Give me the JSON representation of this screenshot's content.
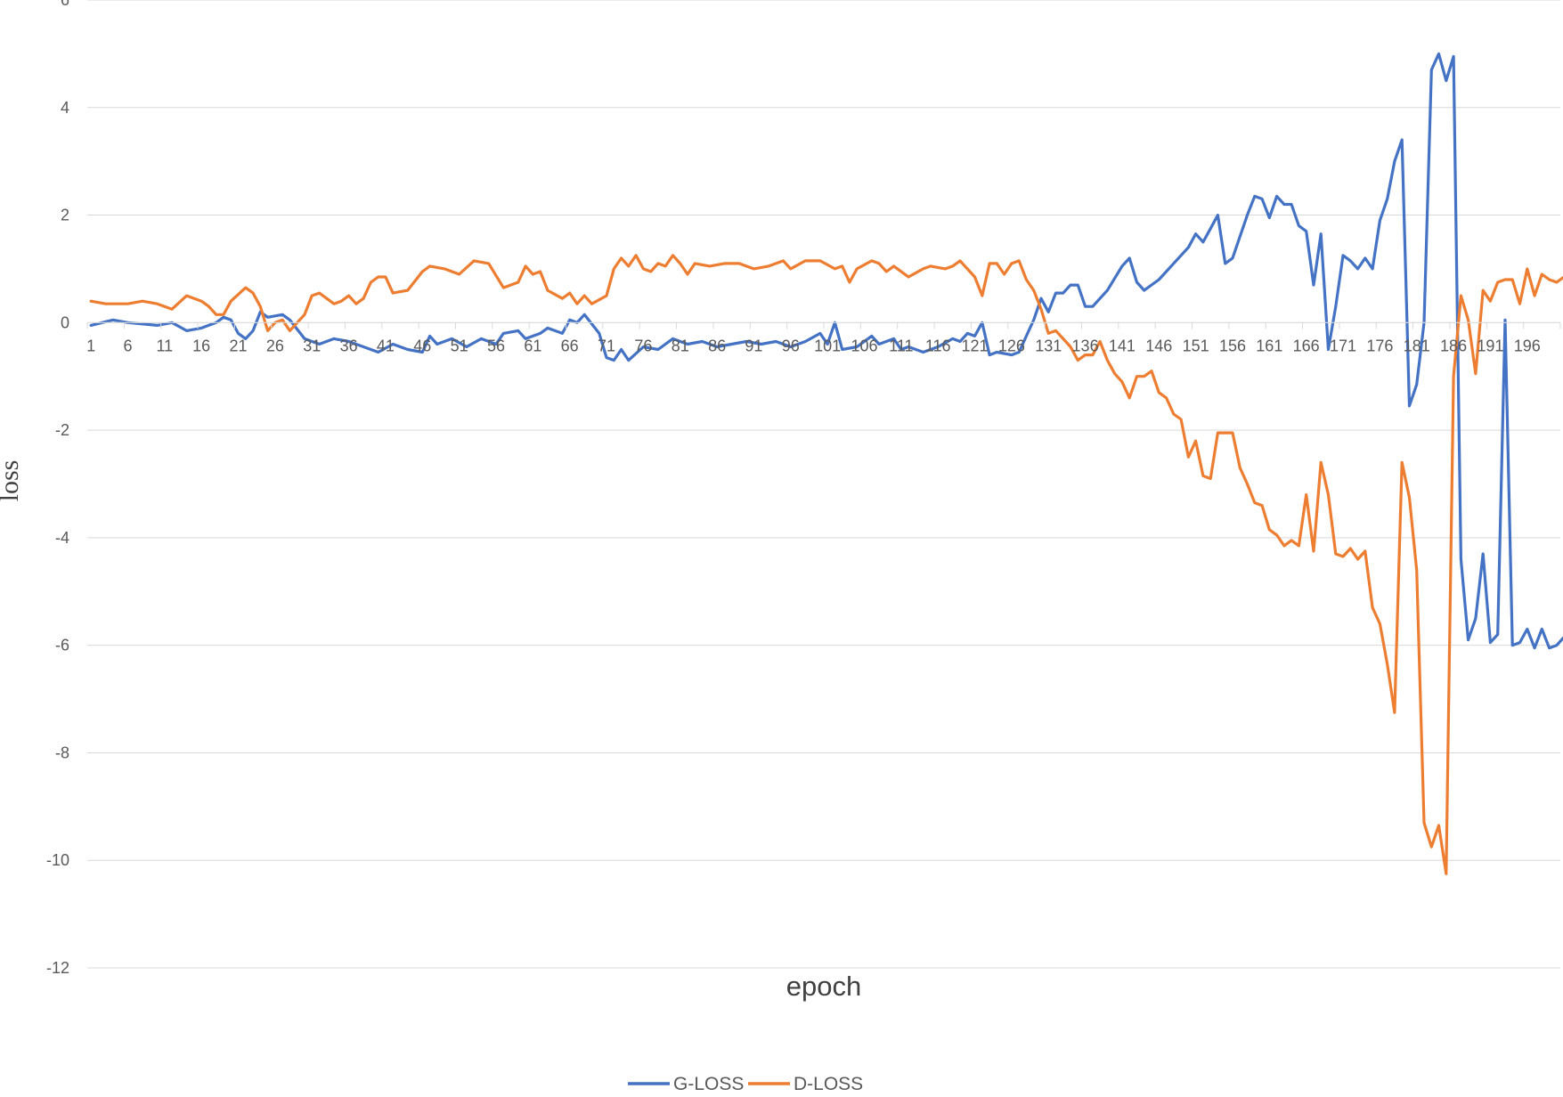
{
  "chart_data": {
    "type": "line",
    "xlabel": "epoch",
    "ylabel": "loss",
    "ylim": [
      -12,
      6
    ],
    "yticks": [
      6,
      4,
      2,
      0,
      -2,
      -4,
      -6,
      -8,
      -10,
      -12
    ],
    "x_tick_labels": [
      "1",
      "6",
      "11",
      "16",
      "21",
      "26",
      "31",
      "36",
      "41",
      "46",
      "51",
      "56",
      "61",
      "66",
      "71",
      "76",
      "81",
      "86",
      "91",
      "96",
      "101",
      "106",
      "111",
      "116",
      "121",
      "126",
      "131",
      "136",
      "141",
      "146",
      "151",
      "156",
      "161",
      "166",
      "171",
      "176",
      "181",
      "186",
      "191",
      "196"
    ],
    "x_range": [
      1,
      200
    ],
    "grid": true,
    "legend_position": "bottom",
    "colors": {
      "G-LOSS": "#4472C4",
      "D-LOSS": "#ED7D31"
    },
    "series": [
      {
        "name": "G-LOSS",
        "points": [
          [
            1,
            -0.05
          ],
          [
            4,
            0.05
          ],
          [
            6,
            0.0
          ],
          [
            10,
            -0.05
          ],
          [
            12,
            0.0
          ],
          [
            14,
            -0.15
          ],
          [
            16,
            -0.1
          ],
          [
            18,
            0.0
          ],
          [
            19,
            0.1
          ],
          [
            20,
            0.05
          ],
          [
            21,
            -0.2
          ],
          [
            22,
            -0.3
          ],
          [
            23,
            -0.15
          ],
          [
            24,
            0.2
          ],
          [
            25,
            0.1
          ],
          [
            27,
            0.15
          ],
          [
            28,
            0.05
          ],
          [
            30,
            -0.3
          ],
          [
            32,
            -0.4
          ],
          [
            34,
            -0.3
          ],
          [
            36,
            -0.35
          ],
          [
            38,
            -0.45
          ],
          [
            40,
            -0.55
          ],
          [
            42,
            -0.4
          ],
          [
            44,
            -0.5
          ],
          [
            46,
            -0.55
          ],
          [
            47,
            -0.25
          ],
          [
            48,
            -0.4
          ],
          [
            50,
            -0.3
          ],
          [
            52,
            -0.45
          ],
          [
            54,
            -0.3
          ],
          [
            56,
            -0.4
          ],
          [
            57,
            -0.2
          ],
          [
            59,
            -0.15
          ],
          [
            60,
            -0.3
          ],
          [
            62,
            -0.2
          ],
          [
            63,
            -0.1
          ],
          [
            65,
            -0.2
          ],
          [
            66,
            0.05
          ],
          [
            67,
            0.0
          ],
          [
            68,
            0.15
          ],
          [
            70,
            -0.2
          ],
          [
            71,
            -0.65
          ],
          [
            72,
            -0.7
          ],
          [
            73,
            -0.5
          ],
          [
            74,
            -0.7
          ],
          [
            76,
            -0.45
          ],
          [
            78,
            -0.5
          ],
          [
            80,
            -0.3
          ],
          [
            82,
            -0.4
          ],
          [
            84,
            -0.35
          ],
          [
            86,
            -0.45
          ],
          [
            88,
            -0.4
          ],
          [
            90,
            -0.35
          ],
          [
            92,
            -0.4
          ],
          [
            94,
            -0.35
          ],
          [
            96,
            -0.45
          ],
          [
            98,
            -0.35
          ],
          [
            100,
            -0.2
          ],
          [
            101,
            -0.4
          ],
          [
            102,
            0.0
          ],
          [
            103,
            -0.5
          ],
          [
            105,
            -0.45
          ],
          [
            107,
            -0.25
          ],
          [
            108,
            -0.4
          ],
          [
            110,
            -0.3
          ],
          [
            111,
            -0.5
          ],
          [
            112,
            -0.45
          ],
          [
            114,
            -0.55
          ],
          [
            116,
            -0.45
          ],
          [
            118,
            -0.3
          ],
          [
            119,
            -0.35
          ],
          [
            120,
            -0.2
          ],
          [
            121,
            -0.25
          ],
          [
            122,
            0.0
          ],
          [
            123,
            -0.6
          ],
          [
            124,
            -0.55
          ],
          [
            126,
            -0.6
          ],
          [
            127,
            -0.55
          ],
          [
            128,
            -0.25
          ],
          [
            129,
            0.05
          ],
          [
            130,
            0.45
          ],
          [
            131,
            0.2
          ],
          [
            132,
            0.55
          ],
          [
            133,
            0.55
          ],
          [
            134,
            0.7
          ],
          [
            135,
            0.7
          ],
          [
            136,
            0.3
          ],
          [
            137,
            0.3
          ],
          [
            139,
            0.6
          ],
          [
            141,
            1.05
          ],
          [
            142,
            1.2
          ],
          [
            143,
            0.75
          ],
          [
            144,
            0.6
          ],
          [
            146,
            0.8
          ],
          [
            148,
            1.1
          ],
          [
            150,
            1.4
          ],
          [
            151,
            1.65
          ],
          [
            152,
            1.5
          ],
          [
            153,
            1.75
          ],
          [
            154,
            2.0
          ],
          [
            155,
            1.1
          ],
          [
            156,
            1.2
          ],
          [
            158,
            2.0
          ],
          [
            159,
            2.35
          ],
          [
            160,
            2.3
          ],
          [
            161,
            1.95
          ],
          [
            162,
            2.35
          ],
          [
            163,
            2.2
          ],
          [
            164,
            2.2
          ],
          [
            165,
            1.8
          ],
          [
            166,
            1.7
          ],
          [
            167,
            0.7
          ],
          [
            168,
            1.65
          ],
          [
            169,
            -0.5
          ],
          [
            170,
            0.3
          ],
          [
            171,
            1.25
          ],
          [
            172,
            1.15
          ],
          [
            173,
            1.0
          ],
          [
            174,
            1.2
          ],
          [
            175,
            1.0
          ],
          [
            176,
            1.9
          ],
          [
            177,
            2.3
          ],
          [
            178,
            3.0
          ],
          [
            179,
            3.4
          ],
          [
            180,
            -1.55
          ],
          [
            181,
            -1.15
          ],
          [
            182,
            0.0
          ],
          [
            183,
            4.7
          ],
          [
            184,
            5.0
          ],
          [
            185,
            4.5
          ],
          [
            186,
            4.95
          ],
          [
            187,
            -4.4
          ],
          [
            188,
            -5.9
          ],
          [
            189,
            -5.5
          ],
          [
            190,
            -4.3
          ],
          [
            191,
            -5.95
          ],
          [
            192,
            -5.8
          ],
          [
            193,
            0.05
          ],
          [
            194,
            -6.0
          ],
          [
            195,
            -5.95
          ],
          [
            196,
            -5.7
          ],
          [
            197,
            -6.05
          ],
          [
            198,
            -5.7
          ],
          [
            199,
            -6.05
          ],
          [
            200,
            -6.0
          ],
          [
            201,
            -5.85
          ],
          [
            202,
            -6.05
          ],
          [
            203,
            -6.05
          ]
        ]
      },
      {
        "name": "D-LOSS",
        "points": [
          [
            1,
            0.4
          ],
          [
            3,
            0.35
          ],
          [
            6,
            0.35
          ],
          [
            8,
            0.4
          ],
          [
            10,
            0.35
          ],
          [
            12,
            0.25
          ],
          [
            14,
            0.5
          ],
          [
            16,
            0.4
          ],
          [
            17,
            0.3
          ],
          [
            18,
            0.15
          ],
          [
            19,
            0.15
          ],
          [
            20,
            0.4
          ],
          [
            22,
            0.65
          ],
          [
            23,
            0.55
          ],
          [
            24,
            0.3
          ],
          [
            25,
            -0.15
          ],
          [
            26,
            0.0
          ],
          [
            27,
            0.05
          ],
          [
            28,
            -0.15
          ],
          [
            30,
            0.15
          ],
          [
            31,
            0.5
          ],
          [
            32,
            0.55
          ],
          [
            34,
            0.35
          ],
          [
            35,
            0.4
          ],
          [
            36,
            0.5
          ],
          [
            37,
            0.35
          ],
          [
            38,
            0.45
          ],
          [
            39,
            0.75
          ],
          [
            40,
            0.85
          ],
          [
            41,
            0.85
          ],
          [
            42,
            0.55
          ],
          [
            44,
            0.6
          ],
          [
            46,
            0.95
          ],
          [
            47,
            1.05
          ],
          [
            49,
            1.0
          ],
          [
            51,
            0.9
          ],
          [
            53,
            1.15
          ],
          [
            55,
            1.1
          ],
          [
            57,
            0.65
          ],
          [
            59,
            0.75
          ],
          [
            60,
            1.05
          ],
          [
            61,
            0.9
          ],
          [
            62,
            0.95
          ],
          [
            63,
            0.6
          ],
          [
            65,
            0.45
          ],
          [
            66,
            0.55
          ],
          [
            67,
            0.35
          ],
          [
            68,
            0.5
          ],
          [
            69,
            0.35
          ],
          [
            71,
            0.5
          ],
          [
            72,
            1.0
          ],
          [
            73,
            1.2
          ],
          [
            74,
            1.05
          ],
          [
            75,
            1.25
          ],
          [
            76,
            1.0
          ],
          [
            77,
            0.95
          ],
          [
            78,
            1.1
          ],
          [
            79,
            1.05
          ],
          [
            80,
            1.25
          ],
          [
            81,
            1.1
          ],
          [
            82,
            0.9
          ],
          [
            83,
            1.1
          ],
          [
            85,
            1.05
          ],
          [
            87,
            1.1
          ],
          [
            89,
            1.1
          ],
          [
            91,
            1.0
          ],
          [
            93,
            1.05
          ],
          [
            95,
            1.15
          ],
          [
            96,
            1.0
          ],
          [
            98,
            1.15
          ],
          [
            100,
            1.15
          ],
          [
            102,
            1.0
          ],
          [
            103,
            1.05
          ],
          [
            104,
            0.75
          ],
          [
            105,
            1.0
          ],
          [
            107,
            1.15
          ],
          [
            108,
            1.1
          ],
          [
            109,
            0.95
          ],
          [
            110,
            1.05
          ],
          [
            112,
            0.85
          ],
          [
            114,
            1.0
          ],
          [
            115,
            1.05
          ],
          [
            117,
            1.0
          ],
          [
            118,
            1.05
          ],
          [
            119,
            1.15
          ],
          [
            121,
            0.85
          ],
          [
            122,
            0.5
          ],
          [
            123,
            1.1
          ],
          [
            124,
            1.1
          ],
          [
            125,
            0.9
          ],
          [
            126,
            1.1
          ],
          [
            127,
            1.15
          ],
          [
            128,
            0.8
          ],
          [
            129,
            0.6
          ],
          [
            130,
            0.25
          ],
          [
            131,
            -0.2
          ],
          [
            132,
            -0.15
          ],
          [
            133,
            -0.3
          ],
          [
            134,
            -0.45
          ],
          [
            135,
            -0.7
          ],
          [
            136,
            -0.6
          ],
          [
            137,
            -0.6
          ],
          [
            138,
            -0.35
          ],
          [
            139,
            -0.7
          ],
          [
            140,
            -0.95
          ],
          [
            141,
            -1.1
          ],
          [
            142,
            -1.4
          ],
          [
            143,
            -1.0
          ],
          [
            144,
            -1.0
          ],
          [
            145,
            -0.9
          ],
          [
            146,
            -1.3
          ],
          [
            147,
            -1.4
          ],
          [
            148,
            -1.7
          ],
          [
            149,
            -1.8
          ],
          [
            150,
            -2.5
          ],
          [
            151,
            -2.2
          ],
          [
            152,
            -2.85
          ],
          [
            153,
            -2.9
          ],
          [
            154,
            -2.05
          ],
          [
            155,
            -2.05
          ],
          [
            156,
            -2.05
          ],
          [
            157,
            -2.7
          ],
          [
            158,
            -3.0
          ],
          [
            159,
            -3.35
          ],
          [
            160,
            -3.4
          ],
          [
            161,
            -3.85
          ],
          [
            162,
            -3.95
          ],
          [
            163,
            -4.15
          ],
          [
            164,
            -4.05
          ],
          [
            165,
            -4.15
          ],
          [
            166,
            -3.2
          ],
          [
            167,
            -4.25
          ],
          [
            168,
            -2.6
          ],
          [
            169,
            -3.2
          ],
          [
            170,
            -4.3
          ],
          [
            171,
            -4.35
          ],
          [
            172,
            -4.2
          ],
          [
            173,
            -4.4
          ],
          [
            174,
            -4.25
          ],
          [
            175,
            -5.3
          ],
          [
            176,
            -5.6
          ],
          [
            177,
            -6.35
          ],
          [
            178,
            -7.25
          ],
          [
            179,
            -2.6
          ],
          [
            180,
            -3.25
          ],
          [
            181,
            -4.6
          ],
          [
            182,
            -9.3
          ],
          [
            183,
            -9.75
          ],
          [
            184,
            -9.35
          ],
          [
            185,
            -10.25
          ],
          [
            186,
            -1.0
          ],
          [
            187,
            0.5
          ],
          [
            188,
            0.05
          ],
          [
            189,
            -0.95
          ],
          [
            190,
            0.6
          ],
          [
            191,
            0.4
          ],
          [
            192,
            0.75
          ],
          [
            193,
            0.8
          ],
          [
            194,
            0.8
          ],
          [
            195,
            0.35
          ],
          [
            196,
            1.0
          ],
          [
            197,
            0.5
          ],
          [
            198,
            0.9
          ],
          [
            199,
            0.8
          ],
          [
            200,
            0.75
          ],
          [
            201,
            0.85
          ],
          [
            202,
            0.9
          ]
        ]
      }
    ]
  }
}
